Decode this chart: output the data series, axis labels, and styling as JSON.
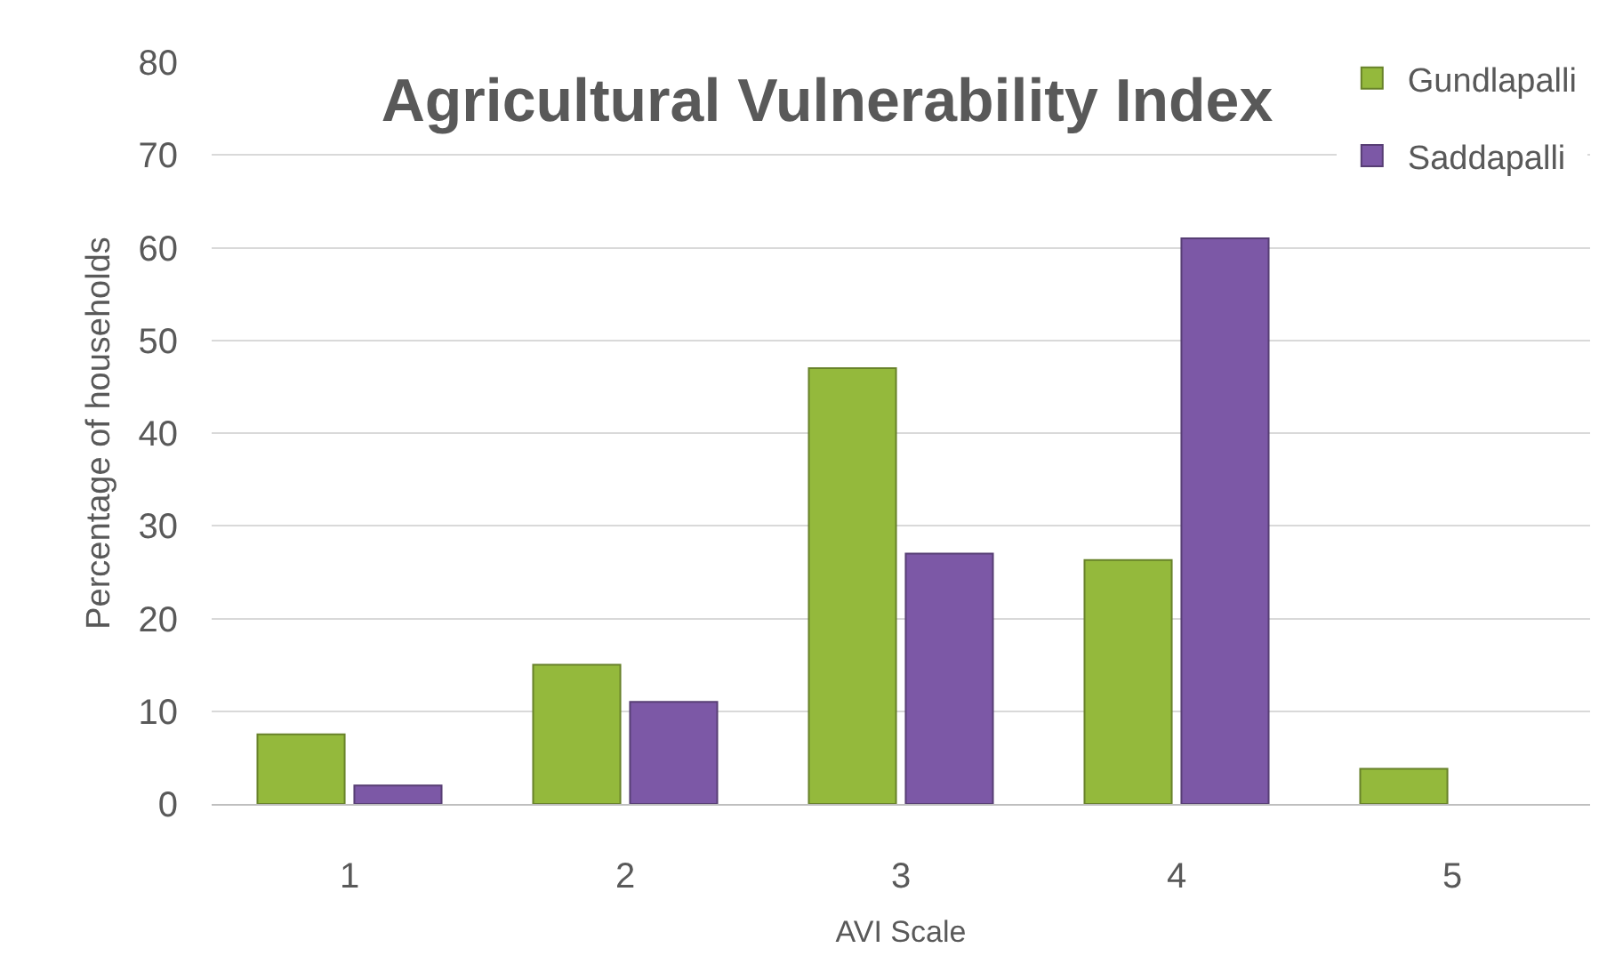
{
  "chart_data": {
    "type": "bar",
    "title": "Agricultural Vulnerability Index",
    "xlabel": "AVI Scale",
    "ylabel": "Percentage of households",
    "categories": [
      "1",
      "2",
      "3",
      "4",
      "5"
    ],
    "series": [
      {
        "name": "Gundlapalli",
        "color": "#94b93c",
        "values": [
          7.5,
          15,
          47,
          26.3,
          3.8
        ]
      },
      {
        "name": "Saddapalli",
        "color": "#7c58a6",
        "values": [
          2,
          11,
          27,
          61,
          null
        ]
      }
    ],
    "ylim": [
      0,
      80
    ],
    "yticks": [
      0,
      10,
      20,
      30,
      40,
      50,
      60,
      70,
      80
    ],
    "grid": "y",
    "legend": "top right"
  }
}
